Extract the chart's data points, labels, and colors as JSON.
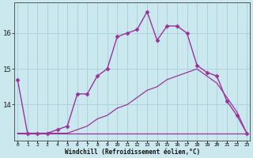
{
  "xlabel": "Windchill (Refroidissement éolien,°C)",
  "background_color": "#cce8ef",
  "grid_color": "#a8d4de",
  "line_color": "#993399",
  "hours": [
    0,
    1,
    2,
    3,
    4,
    5,
    6,
    7,
    8,
    9,
    10,
    11,
    12,
    13,
    14,
    15,
    16,
    17,
    18,
    19,
    20,
    21,
    22,
    23
  ],
  "temp": [
    14.7,
    13.2,
    13.2,
    13.2,
    13.3,
    13.4,
    14.3,
    14.3,
    14.8,
    15.0,
    15.9,
    16.0,
    16.1,
    16.6,
    15.8,
    16.2,
    16.2,
    16.0,
    15.1,
    14.9,
    14.8,
    14.1,
    13.7,
    13.2
  ],
  "windchill": [
    13.2,
    13.2,
    13.2,
    13.2,
    13.2,
    13.2,
    13.3,
    13.4,
    13.6,
    13.7,
    13.9,
    14.0,
    14.2,
    14.4,
    14.5,
    14.7,
    14.8,
    14.9,
    15.0,
    14.8,
    14.6,
    14.2,
    13.8,
    13.2
  ],
  "dewpoint": [
    13.2,
    13.2,
    13.2,
    13.2,
    13.2,
    13.2,
    13.2,
    13.2,
    13.2,
    13.2,
    13.2,
    13.2,
    13.2,
    13.2,
    13.2,
    13.2,
    13.2,
    13.2,
    13.2,
    13.2,
    13.2,
    13.2,
    13.2,
    13.2
  ],
  "ylim": [
    13.0,
    16.85
  ],
  "yticks": [
    14,
    15,
    16
  ],
  "xtick_labels": [
    "0",
    "1",
    "2",
    "3",
    "4",
    "5",
    "6",
    "7",
    "8",
    "9",
    "10",
    "11",
    "12",
    "13",
    "14",
    "15",
    "16",
    "17",
    "18",
    "19",
    "20",
    "21",
    "22",
    "23"
  ],
  "marker": "D",
  "markersize": 2.5
}
